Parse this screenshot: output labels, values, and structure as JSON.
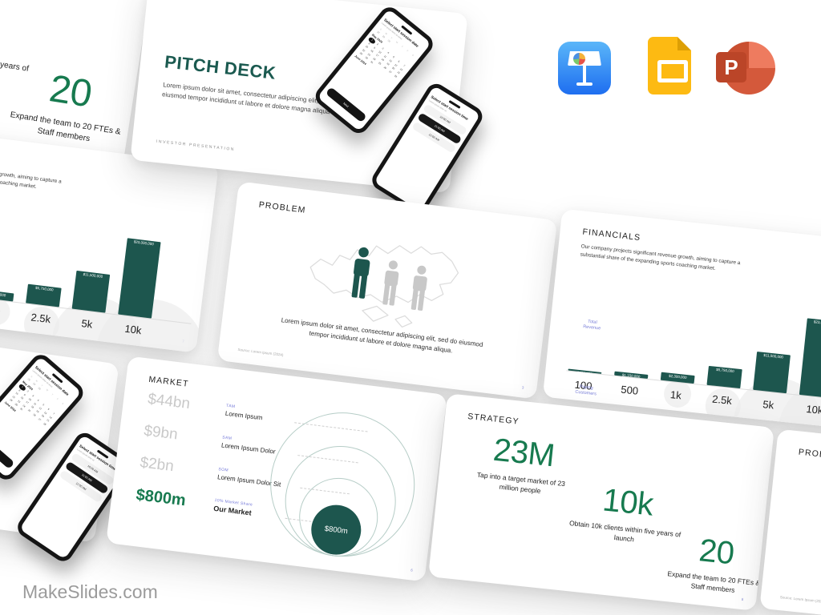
{
  "brand": {
    "logo_text": "MakeSlides.com"
  },
  "app_icons": {
    "keynote": {
      "icon": "keynote-icon"
    },
    "google_slides": {
      "icon": "google-slides-icon"
    },
    "powerpoint": {
      "icon": "powerpoint-icon",
      "letter": "P"
    }
  },
  "colors": {
    "accent_teal": "#1d564e",
    "stat_green": "#177a4f",
    "cover_title_teal": "#1b5a50",
    "tag_blue": "#7277d8",
    "muted_value_gray": "#c9c9c9"
  },
  "slides": {
    "cover": {
      "eyebrow": "INVESTOR PRESENTATION",
      "title": "PITCH DECK",
      "body": "Lorem ipsum dolor sit amet, consectetur adipiscing elit, sed do eiusmod tempor incididunt ut labore et dolore magna aliqua",
      "phone_date": {
        "heading": "Select start session date",
        "subheading": "Lorem ipsum dolor sit amet",
        "day_headers": [
          "S",
          "M",
          "T",
          "W",
          "T",
          "F",
          "S"
        ],
        "prev_dates": [
          "28",
          "29",
          "30"
        ],
        "month_top": "May 2024",
        "month_bottom": "June 2024",
        "selected_day": "1",
        "button_label": "Next"
      },
      "phone_time": {
        "heading": "Select start session time",
        "subheading": "Lorem ipsum dolor sit",
        "options": [
          "10:00 AM",
          "11:00 AM",
          "12:00 AM"
        ],
        "selected_index": 1
      }
    },
    "problem": {
      "title": "PROBLEM",
      "caption": "Lorem ipsum dolor sit amet, consectetur adipiscing elit, sed do eiusmod tempor incididunt ut labore et dolore magna aliqua.",
      "source": "Source: Lorem Ipsum (2024)",
      "page": "3"
    },
    "financials": {
      "title": "FINANCIALS",
      "intro": "Our company projects significant revenue growth, aiming to capture a substantial share of the expanding sports coaching market.",
      "y_axis_line1": "Total",
      "y_axis_line2": "Revenue",
      "x_axis_line1": "Paying",
      "x_axis_line2": "Customers",
      "page": "7",
      "chart": {
        "type": "bar",
        "categories": [
          "100",
          "500",
          "1k",
          "2.5k",
          "5k",
          "10k"
        ],
        "values": [
          230000,
          1150000,
          2300000,
          5750000,
          11500000,
          23000000
        ],
        "value_labels": [
          "$230,000",
          "$1,150,000",
          "$2,300,000",
          "$5,750,000",
          "$11,500,000",
          "$23,000,000"
        ],
        "xlabel": "Paying Customers",
        "ylabel": "Total Revenue"
      }
    },
    "market": {
      "title": "MARKET",
      "page": "6",
      "bubble_label": "$800m",
      "rows": [
        {
          "value": "$44bn",
          "tag": "TAM",
          "name": "Lorem Ipsum"
        },
        {
          "value": "$9bn",
          "tag": "SAM",
          "name": "Lorem Ipsum Dolor"
        },
        {
          "value": "$2bn",
          "tag": "SOM",
          "name": "Lorem Ipsum Dolor Sit"
        },
        {
          "value": "$800m",
          "tag": "10% Market Share",
          "name": "Our Market"
        }
      ]
    },
    "strategy": {
      "title": "STRATEGY",
      "page": "8",
      "stats": [
        {
          "value": "23M",
          "caption": "Tap into a target market of 23 million people"
        },
        {
          "value": "10k",
          "caption": "Obtain 10k clients within five years of launch"
        },
        {
          "value": "20",
          "caption": "Expand the team to 20 FTEs & Staff members"
        }
      ]
    }
  }
}
